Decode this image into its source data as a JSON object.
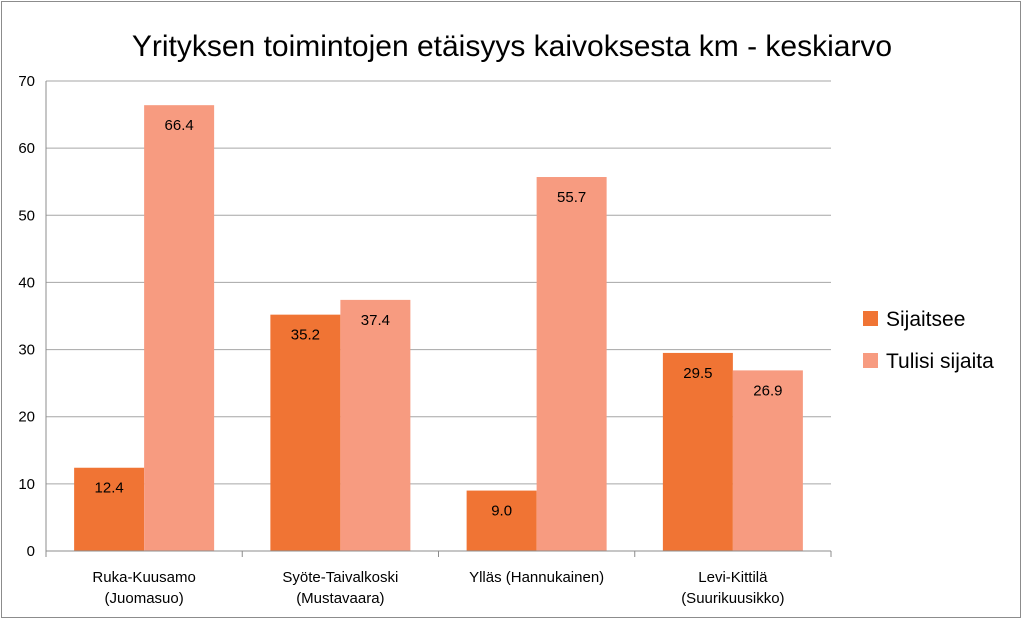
{
  "chart_data": {
    "type": "bar",
    "title": "Yrityksen toimintojen etäisyys kaivoksesta km - keskiarvo",
    "categories": [
      [
        "Ruka-Kuusamo",
        "(Juomasuo)"
      ],
      [
        "Syöte-Taivalkoski",
        "(Mustavaara)"
      ],
      [
        "Ylläs (Hannukainen)"
      ],
      [
        "Levi-Kittilä",
        "(Suurikuusikko)"
      ]
    ],
    "series": [
      {
        "name": "Sijaitsee",
        "color": "#f07434",
        "values": [
          12.4,
          35.2,
          9.0,
          29.5
        ],
        "labels": [
          "12.4",
          "35.2",
          "9.0",
          "29.5"
        ]
      },
      {
        "name": "Tulisi sijaita",
        "color": "#f79b80",
        "values": [
          66.4,
          37.4,
          55.7,
          26.9
        ],
        "labels": [
          "66.4",
          "37.4",
          "55.7",
          "26.9"
        ]
      }
    ],
    "ylim": [
      0,
      70
    ],
    "yticks": [
      0,
      10,
      20,
      30,
      40,
      50,
      60,
      70
    ],
    "grid": true,
    "legend_position": "right",
    "gridline_color": "#a6a6a6"
  }
}
